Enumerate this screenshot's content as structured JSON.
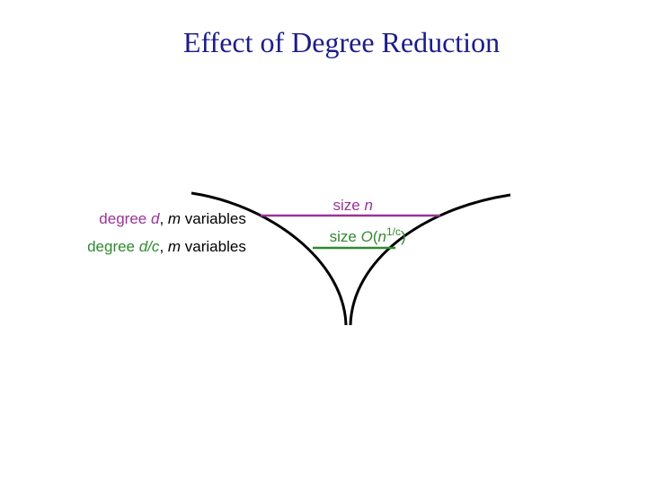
{
  "title": "Effect of Degree Reduction",
  "left_labels": [
    {
      "parts": [
        "degree ",
        "d",
        ", ",
        "m",
        " variables"
      ]
    },
    {
      "parts": [
        "degree ",
        "d/c",
        ", ",
        "m",
        " variables"
      ]
    }
  ],
  "right_labels": [
    {
      "parts": [
        "size ",
        "n"
      ]
    },
    {
      "parts": [
        "size ",
        "O",
        "(",
        "n",
        "1/c",
        ")"
      ]
    }
  ]
}
